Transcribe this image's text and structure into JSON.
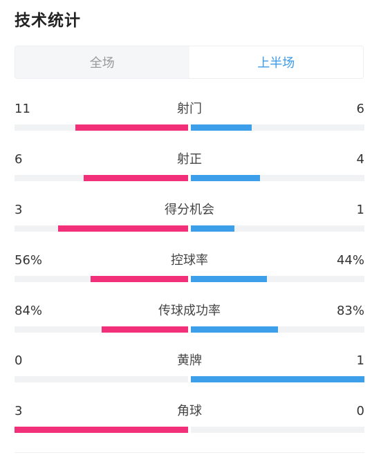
{
  "header": {
    "title": "技术统计"
  },
  "tabs": [
    {
      "label": "全场",
      "active": false
    },
    {
      "label": "上半场",
      "active": true
    }
  ],
  "colors": {
    "home": "#f2307a",
    "away": "#3d9ee9",
    "active_tab": "#3b9be8"
  },
  "stats": [
    {
      "label": "射门",
      "home": "11",
      "away": "6",
      "home_ratio": 0.65,
      "away_ratio": 0.35
    },
    {
      "label": "射正",
      "home": "6",
      "away": "4",
      "home_ratio": 0.6,
      "away_ratio": 0.4
    },
    {
      "label": "得分机会",
      "home": "3",
      "away": "1",
      "home_ratio": 0.75,
      "away_ratio": 0.25
    },
    {
      "label": "控球率",
      "home": "56%",
      "away": "44%",
      "home_ratio": 0.56,
      "away_ratio": 0.44
    },
    {
      "label": "传球成功率",
      "home": "84%",
      "away": "83%",
      "home_ratio": 0.5,
      "away_ratio": 0.5
    },
    {
      "label": "黄牌",
      "home": "0",
      "away": "1",
      "home_ratio": 0.0,
      "away_ratio": 1.0
    },
    {
      "label": "角球",
      "home": "3",
      "away": "0",
      "home_ratio": 1.0,
      "away_ratio": 0.0
    }
  ]
}
